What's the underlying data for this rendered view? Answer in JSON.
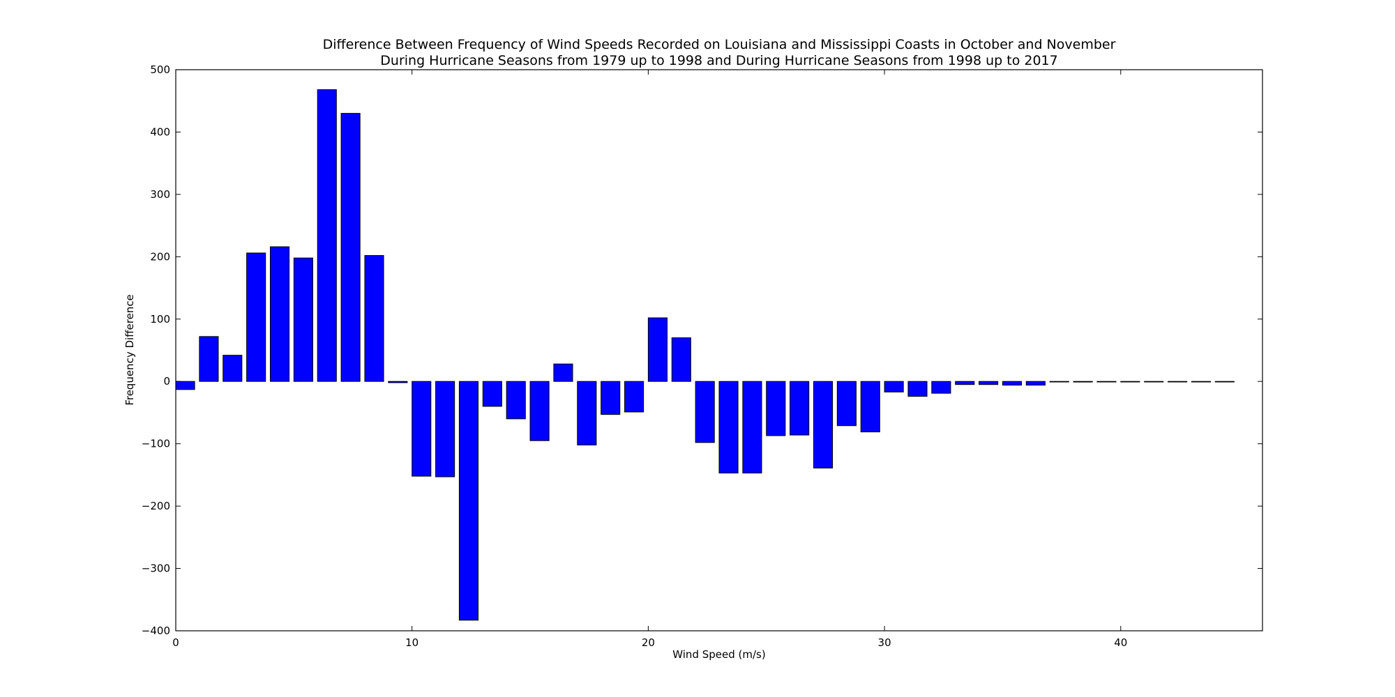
{
  "chart_data": {
    "type": "bar",
    "title": "Difference Between Frequency of Wind Speeds Recorded on Louisiana and Mississippi Coasts in October and November",
    "subtitle": "During Hurricane Seasons from 1979 up to 1998 and During Hurricane Seasons from 1998 up to 2017",
    "xlabel": "Wind Speed (m/s)",
    "ylabel": "Frequency Difference",
    "xlim": [
      0,
      46
    ],
    "ylim": [
      -400,
      500
    ],
    "xticks": [
      0,
      10,
      20,
      30,
      40
    ],
    "yticks": [
      -400,
      -300,
      -200,
      -100,
      0,
      100,
      200,
      300,
      400,
      500
    ],
    "xtick_labels": [
      "0",
      "10",
      "20",
      "30",
      "40"
    ],
    "ytick_labels": [
      "−400",
      "−300",
      "−200",
      "−100",
      "0",
      "100",
      "200",
      "300",
      "400",
      "500"
    ],
    "bar_width": 0.8,
    "x": [
      0,
      1,
      2,
      3,
      4,
      5,
      6,
      7,
      8,
      9,
      10,
      11,
      12,
      13,
      14,
      15,
      16,
      17,
      18,
      19,
      20,
      21,
      22,
      23,
      24,
      25,
      26,
      27,
      28,
      29,
      30,
      31,
      32,
      33,
      34,
      35,
      36,
      37,
      38,
      39,
      40,
      41,
      42,
      43,
      44
    ],
    "values": [
      -13,
      72,
      42,
      206,
      216,
      198,
      468,
      430,
      202,
      -2,
      -152,
      -153,
      -383,
      -40,
      -60,
      -95,
      28,
      -102,
      -53,
      -49,
      102,
      70,
      -98,
      -147,
      -147,
      -87,
      -86,
      -139,
      -71,
      -81,
      -17,
      -24,
      -19,
      -5,
      -5,
      -6,
      -6,
      0,
      -1,
      0,
      0,
      0,
      0,
      0,
      0
    ],
    "grid": false,
    "colors": {
      "bar_fill": "#0000ff",
      "bar_edge": "#000000",
      "axes": "#000000"
    }
  }
}
